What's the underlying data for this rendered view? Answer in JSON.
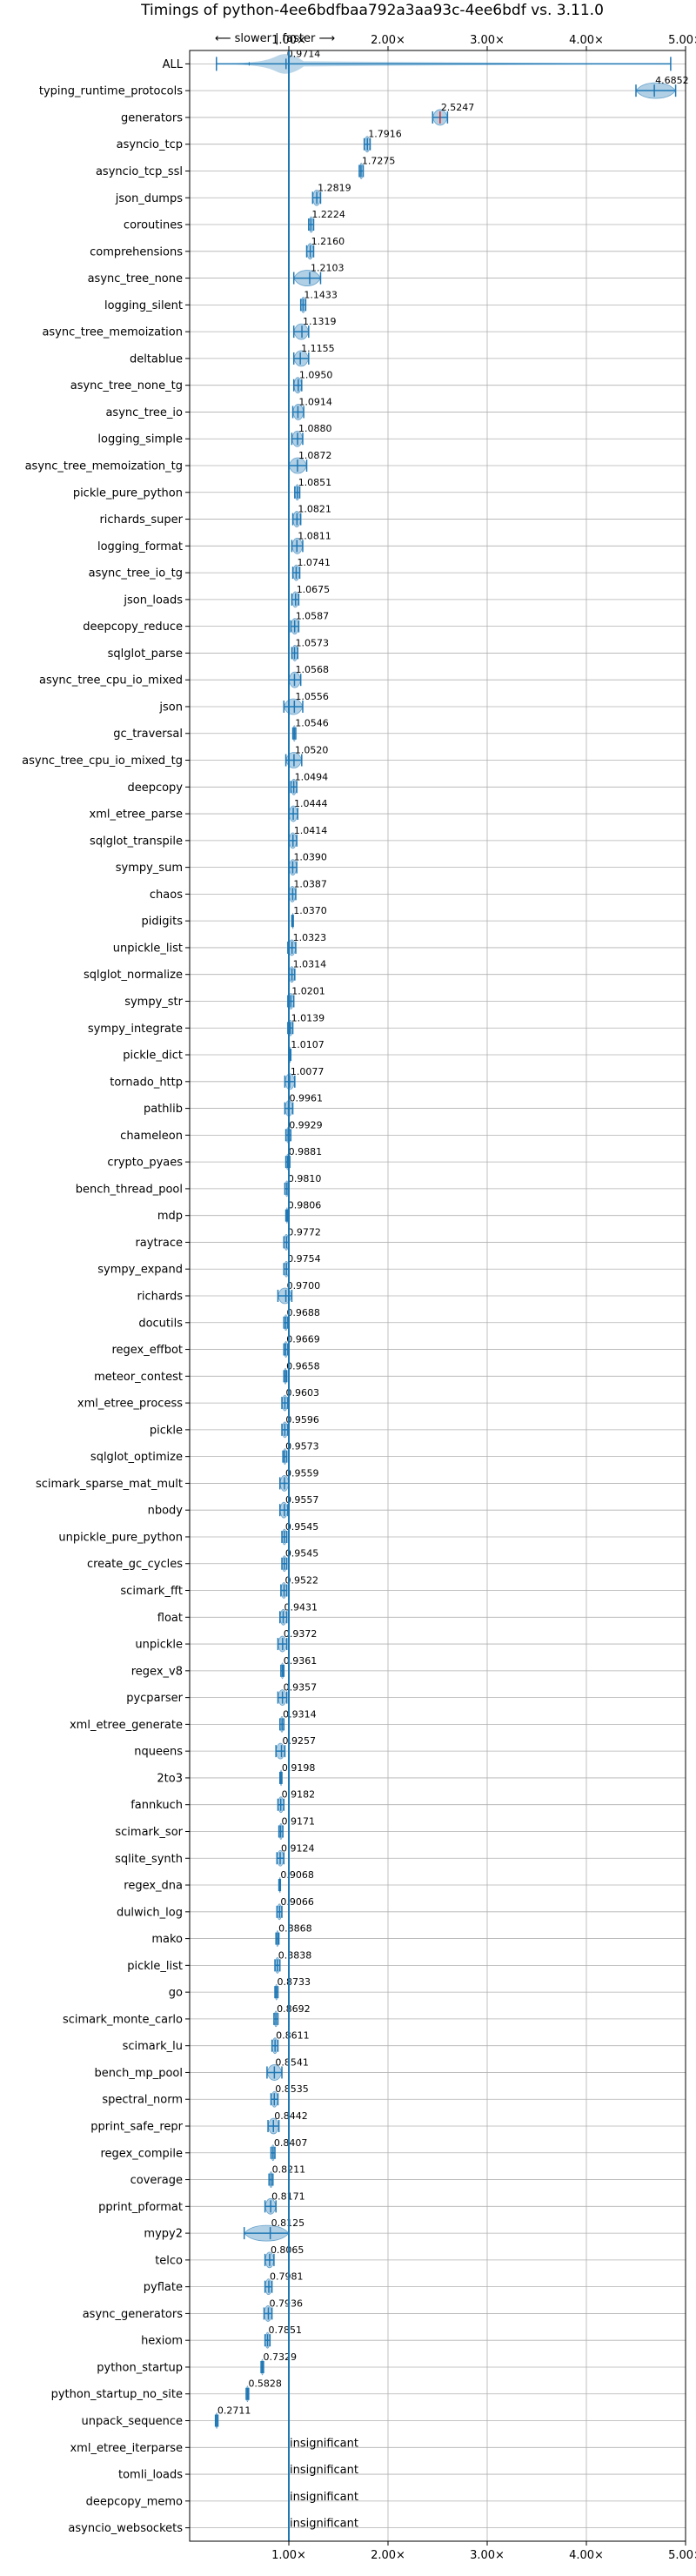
{
  "chart_data": {
    "type": "violin",
    "title": "Timings of python-4ee6bdfbaa792a3aa93c-4ee6bdf vs. 3.11.0",
    "direction_label": "⟵ slower | faster ⟶",
    "xlim": [
      0.0,
      5.0
    ],
    "x_ticks": [
      1,
      2,
      3,
      4,
      5
    ],
    "x_tick_labels": [
      "1.00×",
      "2.00×",
      "3.00×",
      "4.00×",
      "5.00×"
    ],
    "baseline": 1.0,
    "grid": true,
    "colors": {
      "violin": "#1f77b4",
      "line": "#1f77b4",
      "median_marker": "#d62728"
    },
    "insignificant_label": "insignificant",
    "benchmarks": [
      {
        "name": "ALL",
        "value": 0.9714,
        "label": "0.9714",
        "low": 0.27,
        "high": 4.85
      },
      {
        "name": "typing_runtime_protocols",
        "value": 4.6852,
        "label": "4.6852",
        "low": 4.5,
        "high": 4.9
      },
      {
        "name": "generators",
        "value": 2.5247,
        "label": "2.5247",
        "low": 2.45,
        "high": 2.6
      },
      {
        "name": "asyncio_tcp",
        "value": 1.7916,
        "label": "1.7916",
        "low": 1.76,
        "high": 1.82
      },
      {
        "name": "asyncio_tcp_ssl",
        "value": 1.7275,
        "label": "1.7275",
        "low": 1.71,
        "high": 1.75
      },
      {
        "name": "json_dumps",
        "value": 1.2819,
        "label": "1.2819",
        "low": 1.24,
        "high": 1.32
      },
      {
        "name": "coroutines",
        "value": 1.2224,
        "label": "1.2224",
        "low": 1.2,
        "high": 1.25
      },
      {
        "name": "comprehensions",
        "value": 1.216,
        "label": "1.2160",
        "low": 1.18,
        "high": 1.25
      },
      {
        "name": "async_tree_none",
        "value": 1.2103,
        "label": "1.2103",
        "low": 1.05,
        "high": 1.32
      },
      {
        "name": "logging_silent",
        "value": 1.1433,
        "label": "1.1433",
        "low": 1.12,
        "high": 1.17
      },
      {
        "name": "async_tree_memoization",
        "value": 1.1319,
        "label": "1.1319",
        "low": 1.05,
        "high": 1.2
      },
      {
        "name": "deltablue",
        "value": 1.1155,
        "label": "1.1155",
        "low": 1.05,
        "high": 1.2
      },
      {
        "name": "async_tree_none_tg",
        "value": 1.095,
        "label": "1.0950",
        "low": 1.05,
        "high": 1.13
      },
      {
        "name": "async_tree_io",
        "value": 1.0914,
        "label": "1.0914",
        "low": 1.04,
        "high": 1.15
      },
      {
        "name": "logging_simple",
        "value": 1.088,
        "label": "1.0880",
        "low": 1.03,
        "high": 1.14
      },
      {
        "name": "async_tree_memoization_tg",
        "value": 1.0872,
        "label": "1.0872",
        "low": 1.0,
        "high": 1.18
      },
      {
        "name": "pickle_pure_python",
        "value": 1.0851,
        "label": "1.0851",
        "low": 1.06,
        "high": 1.11
      },
      {
        "name": "richards_super",
        "value": 1.0821,
        "label": "1.0821",
        "low": 1.04,
        "high": 1.12
      },
      {
        "name": "logging_format",
        "value": 1.0811,
        "label": "1.0811",
        "low": 1.03,
        "high": 1.14
      },
      {
        "name": "async_tree_io_tg",
        "value": 1.0741,
        "label": "1.0741",
        "low": 1.04,
        "high": 1.11
      },
      {
        "name": "json_loads",
        "value": 1.0675,
        "label": "1.0675",
        "low": 1.03,
        "high": 1.1
      },
      {
        "name": "deepcopy_reduce",
        "value": 1.0587,
        "label": "1.0587",
        "low": 1.02,
        "high": 1.1
      },
      {
        "name": "sqlglot_parse",
        "value": 1.0573,
        "label": "1.0573",
        "low": 1.03,
        "high": 1.09
      },
      {
        "name": "async_tree_cpu_io_mixed",
        "value": 1.0568,
        "label": "1.0568",
        "low": 1.0,
        "high": 1.12
      },
      {
        "name": "json",
        "value": 1.0556,
        "label": "1.0556",
        "low": 0.95,
        "high": 1.14
      },
      {
        "name": "gc_traversal",
        "value": 1.0546,
        "label": "1.0546",
        "low": 1.04,
        "high": 1.07
      },
      {
        "name": "async_tree_cpu_io_mixed_tg",
        "value": 1.052,
        "label": "1.0520",
        "low": 0.97,
        "high": 1.13
      },
      {
        "name": "deepcopy",
        "value": 1.0494,
        "label": "1.0494",
        "low": 1.02,
        "high": 1.08
      },
      {
        "name": "xml_etree_parse",
        "value": 1.0444,
        "label": "1.0444",
        "low": 1.0,
        "high": 1.09
      },
      {
        "name": "sqlglot_transpile",
        "value": 1.0414,
        "label": "1.0414",
        "low": 1.0,
        "high": 1.08
      },
      {
        "name": "sympy_sum",
        "value": 1.039,
        "label": "1.0390",
        "low": 1.0,
        "high": 1.08
      },
      {
        "name": "chaos",
        "value": 1.0387,
        "label": "1.0387",
        "low": 1.0,
        "high": 1.07
      },
      {
        "name": "pidigits",
        "value": 1.037,
        "label": "1.0370",
        "low": 1.03,
        "high": 1.045
      },
      {
        "name": "unpickle_list",
        "value": 1.0323,
        "label": "1.0323",
        "low": 0.99,
        "high": 1.07
      },
      {
        "name": "sqlglot_normalize",
        "value": 1.0314,
        "label": "1.0314",
        "low": 1.0,
        "high": 1.06
      },
      {
        "name": "sympy_str",
        "value": 1.0201,
        "label": "1.0201",
        "low": 0.99,
        "high": 1.05
      },
      {
        "name": "sympy_integrate",
        "value": 1.0139,
        "label": "1.0139",
        "low": 0.99,
        "high": 1.04
      },
      {
        "name": "pickle_dict",
        "value": 1.0107,
        "label": "1.0107",
        "low": 1.0,
        "high": 1.02
      },
      {
        "name": "tornado_http",
        "value": 1.0077,
        "label": "1.0077",
        "low": 0.96,
        "high": 1.06
      },
      {
        "name": "pathlib",
        "value": 0.9961,
        "label": "0.9961",
        "low": 0.96,
        "high": 1.04
      },
      {
        "name": "chameleon",
        "value": 0.9929,
        "label": "0.9929",
        "low": 0.97,
        "high": 1.02
      },
      {
        "name": "crypto_pyaes",
        "value": 0.9881,
        "label": "0.9881",
        "low": 0.97,
        "high": 1.01
      },
      {
        "name": "bench_thread_pool",
        "value": 0.981,
        "label": "0.9810",
        "low": 0.96,
        "high": 1.0
      },
      {
        "name": "mdp",
        "value": 0.9806,
        "label": "0.9806",
        "low": 0.97,
        "high": 0.99
      },
      {
        "name": "raytrace",
        "value": 0.9772,
        "label": "0.9772",
        "low": 0.95,
        "high": 1.0
      },
      {
        "name": "sympy_expand",
        "value": 0.9754,
        "label": "0.9754",
        "low": 0.95,
        "high": 1.0
      },
      {
        "name": "richards",
        "value": 0.97,
        "label": "0.9700",
        "low": 0.89,
        "high": 1.03
      },
      {
        "name": "docutils",
        "value": 0.9688,
        "label": "0.9688",
        "low": 0.95,
        "high": 0.99
      },
      {
        "name": "regex_effbot",
        "value": 0.9669,
        "label": "0.9669",
        "low": 0.95,
        "high": 0.99
      },
      {
        "name": "meteor_contest",
        "value": 0.9658,
        "label": "0.9658",
        "low": 0.95,
        "high": 0.98
      },
      {
        "name": "xml_etree_process",
        "value": 0.9603,
        "label": "0.9603",
        "low": 0.93,
        "high": 0.99
      },
      {
        "name": "pickle",
        "value": 0.9596,
        "label": "0.9596",
        "low": 0.93,
        "high": 0.99
      },
      {
        "name": "sqlglot_optimize",
        "value": 0.9573,
        "label": "0.9573",
        "low": 0.94,
        "high": 0.98
      },
      {
        "name": "scimark_sparse_mat_mult",
        "value": 0.9559,
        "label": "0.9559",
        "low": 0.91,
        "high": 1.0
      },
      {
        "name": "nbody",
        "value": 0.9557,
        "label": "0.9557",
        "low": 0.91,
        "high": 0.99
      },
      {
        "name": "unpickle_pure_python",
        "value": 0.9545,
        "label": "0.9545",
        "low": 0.93,
        "high": 0.98
      },
      {
        "name": "create_gc_cycles",
        "value": 0.9545,
        "label": "0.9545",
        "low": 0.93,
        "high": 0.98
      },
      {
        "name": "scimark_fft",
        "value": 0.9522,
        "label": "0.9522",
        "low": 0.92,
        "high": 0.98
      },
      {
        "name": "float",
        "value": 0.9431,
        "label": "0.9431",
        "low": 0.91,
        "high": 0.98
      },
      {
        "name": "unpickle",
        "value": 0.9372,
        "label": "0.9372",
        "low": 0.89,
        "high": 0.98
      },
      {
        "name": "regex_v8",
        "value": 0.9361,
        "label": "0.9361",
        "low": 0.92,
        "high": 0.95
      },
      {
        "name": "pycparser",
        "value": 0.9357,
        "label": "0.9357",
        "low": 0.89,
        "high": 0.98
      },
      {
        "name": "xml_etree_generate",
        "value": 0.9314,
        "label": "0.9314",
        "low": 0.91,
        "high": 0.95
      },
      {
        "name": "nqueens",
        "value": 0.9257,
        "label": "0.9257",
        "low": 0.87,
        "high": 0.96
      },
      {
        "name": "2to3",
        "value": 0.9198,
        "label": "0.9198",
        "low": 0.91,
        "high": 0.93
      },
      {
        "name": "fannkuch",
        "value": 0.9182,
        "label": "0.9182",
        "low": 0.89,
        "high": 0.95
      },
      {
        "name": "scimark_sor",
        "value": 0.9171,
        "label": "0.9171",
        "low": 0.9,
        "high": 0.94
      },
      {
        "name": "sqlite_synth",
        "value": 0.9124,
        "label": "0.9124",
        "low": 0.88,
        "high": 0.95
      },
      {
        "name": "regex_dna",
        "value": 0.9068,
        "label": "0.9068",
        "low": 0.9,
        "high": 0.915
      },
      {
        "name": "dulwich_log",
        "value": 0.9066,
        "label": "0.9066",
        "low": 0.88,
        "high": 0.93
      },
      {
        "name": "mako",
        "value": 0.8868,
        "label": "0.8868",
        "low": 0.87,
        "high": 0.9
      },
      {
        "name": "pickle_list",
        "value": 0.8838,
        "label": "0.8838",
        "low": 0.86,
        "high": 0.91
      },
      {
        "name": "go",
        "value": 0.8733,
        "label": "0.8733",
        "low": 0.86,
        "high": 0.89
      },
      {
        "name": "scimark_monte_carlo",
        "value": 0.8692,
        "label": "0.8692",
        "low": 0.85,
        "high": 0.89
      },
      {
        "name": "scimark_lu",
        "value": 0.8611,
        "label": "0.8611",
        "low": 0.83,
        "high": 0.89
      },
      {
        "name": "bench_mp_pool",
        "value": 0.8541,
        "label": "0.8541",
        "low": 0.78,
        "high": 0.93
      },
      {
        "name": "spectral_norm",
        "value": 0.8535,
        "label": "0.8535",
        "low": 0.82,
        "high": 0.89
      },
      {
        "name": "pprint_safe_repr",
        "value": 0.8442,
        "label": "0.8442",
        "low": 0.79,
        "high": 0.9
      },
      {
        "name": "regex_compile",
        "value": 0.8407,
        "label": "0.8407",
        "low": 0.82,
        "high": 0.86
      },
      {
        "name": "coverage",
        "value": 0.8211,
        "label": "0.8211",
        "low": 0.8,
        "high": 0.84
      },
      {
        "name": "pprint_pformat",
        "value": 0.8171,
        "label": "0.8171",
        "low": 0.76,
        "high": 0.87
      },
      {
        "name": "mypy2",
        "value": 0.8125,
        "label": "0.8125",
        "low": 0.55,
        "high": 1.0
      },
      {
        "name": "telco",
        "value": 0.8065,
        "label": "0.8065",
        "low": 0.76,
        "high": 0.85
      },
      {
        "name": "pyflate",
        "value": 0.7981,
        "label": "0.7981",
        "low": 0.76,
        "high": 0.83
      },
      {
        "name": "async_generators",
        "value": 0.7936,
        "label": "0.7936",
        "low": 0.75,
        "high": 0.83
      },
      {
        "name": "hexiom",
        "value": 0.7851,
        "label": "0.7851",
        "low": 0.76,
        "high": 0.81
      },
      {
        "name": "python_startup",
        "value": 0.7329,
        "label": "0.7329",
        "low": 0.72,
        "high": 0.745
      },
      {
        "name": "python_startup_no_site",
        "value": 0.5828,
        "label": "0.5828",
        "low": 0.57,
        "high": 0.595
      },
      {
        "name": "unpack_sequence",
        "value": 0.2711,
        "label": "0.2711",
        "low": 0.26,
        "high": 0.285
      },
      {
        "name": "xml_etree_iterparse",
        "value": null,
        "label": "insignificant"
      },
      {
        "name": "tomli_loads",
        "value": null,
        "label": "insignificant"
      },
      {
        "name": "deepcopy_memo",
        "value": null,
        "label": "insignificant"
      },
      {
        "name": "asyncio_websockets",
        "value": null,
        "label": "insignificant"
      }
    ]
  }
}
